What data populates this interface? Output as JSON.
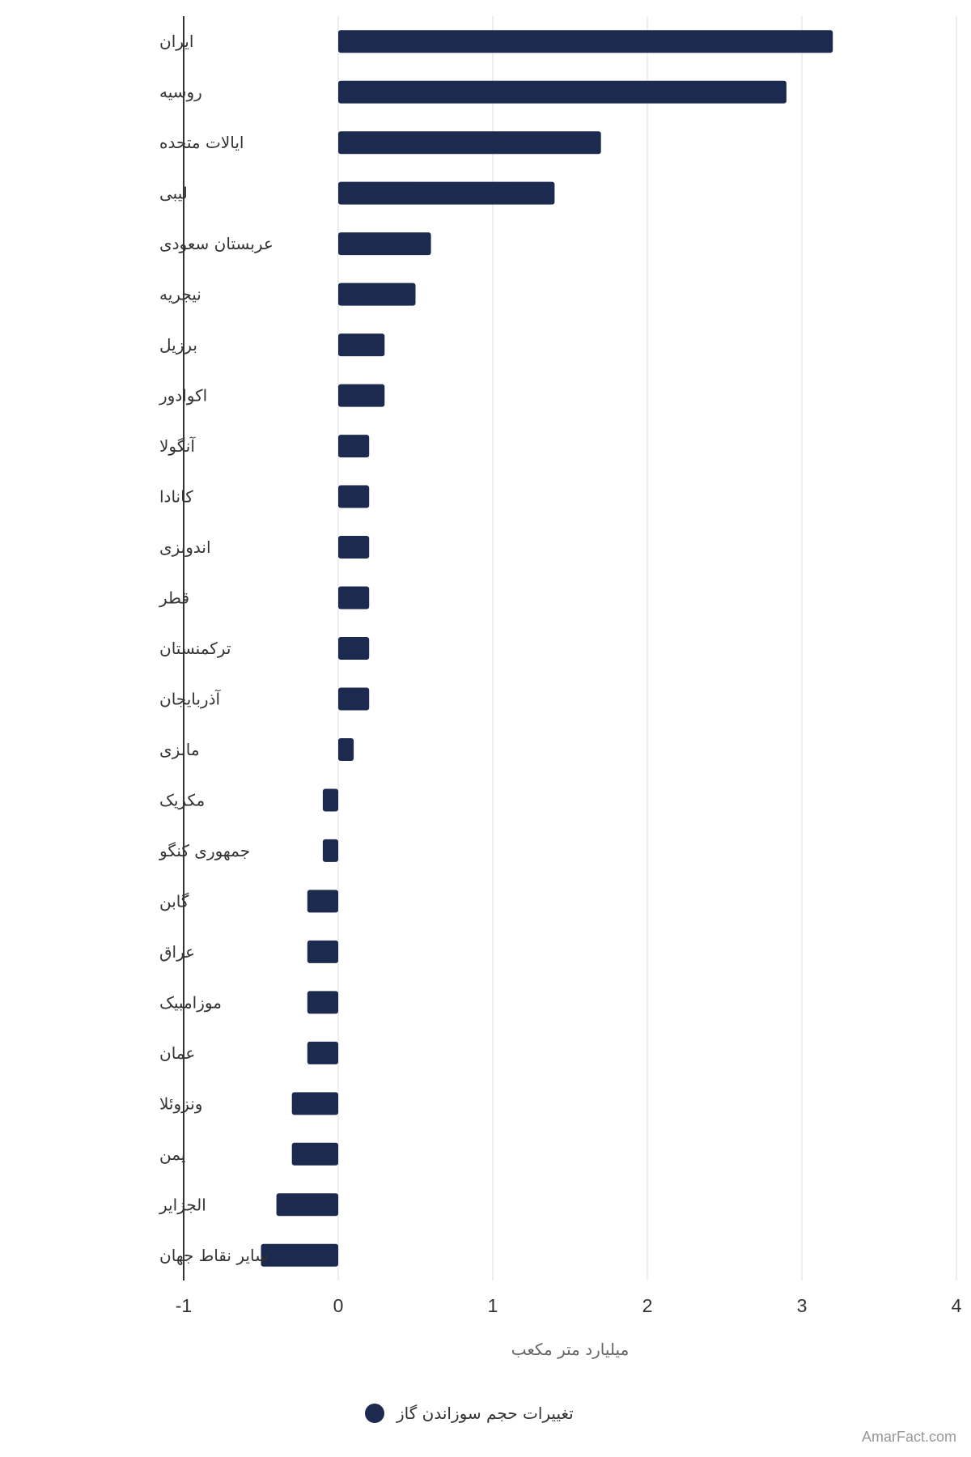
{
  "chart_data": {
    "type": "bar",
    "orientation": "horizontal",
    "categories": [
      "ایران",
      "روسیه",
      "ایالات متحده",
      "لیبی",
      "عربستان سعودی",
      "نیجریه",
      "برزیل",
      "اکوادور",
      "آنگولا",
      "کانادا",
      "اندونزی",
      "قطر",
      "ترکمنستان",
      "آذربایجان",
      "مالزی",
      "مکزیک",
      "جمهوری کنگو",
      "گابن",
      "عراق",
      "موزامبیک",
      "عمان",
      "ونزوئلا",
      "یمن",
      "الجزایر",
      "سایر نقاط جهان"
    ],
    "series": [
      {
        "name": "تغییرات حجم سوزاندن گاز",
        "color": "#1b2a4e",
        "values": [
          3.2,
          2.9,
          1.7,
          1.4,
          0.6,
          0.5,
          0.3,
          0.3,
          0.2,
          0.2,
          0.2,
          0.2,
          0.2,
          0.2,
          0.1,
          -0.1,
          -0.1,
          -0.2,
          -0.2,
          -0.2,
          -0.2,
          -0.3,
          -0.3,
          -0.4,
          -0.5
        ]
      }
    ],
    "xlabel": "میلیارد متر مکعب",
    "xlim": [
      -1,
      4
    ],
    "xticks": [
      "-1",
      "0",
      "1",
      "2",
      "3",
      "4"
    ],
    "grid": true,
    "legend_position": "bottom-center"
  },
  "credit": "AmarFact.com"
}
